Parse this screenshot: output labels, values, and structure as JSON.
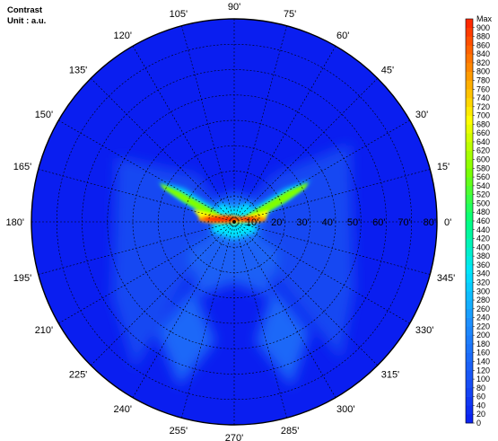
{
  "title": "Contrast",
  "unit": "Unit : a.u.",
  "chart_data": {
    "type": "heatmap",
    "subtype": "polar-conoscopic",
    "azimuth_labels": [
      "0'",
      "15'",
      "30'",
      "45'",
      "60'",
      "75'",
      "90'",
      "105'",
      "120'",
      "135'",
      "150'",
      "165'",
      "180'",
      "195'",
      "210'",
      "225'",
      "240'",
      "255'",
      "270'",
      "285'",
      "300'",
      "315'",
      "330'",
      "345'"
    ],
    "azimuth_angles": [
      0,
      15,
      30,
      45,
      60,
      75,
      90,
      105,
      120,
      135,
      150,
      165,
      180,
      195,
      210,
      225,
      240,
      255,
      270,
      285,
      300,
      315,
      330,
      345
    ],
    "polar_labels": [
      "10'",
      "20'",
      "30'",
      "40'",
      "50'",
      "60'",
      "70'",
      "80'"
    ],
    "polar_values": [
      10,
      20,
      30,
      40,
      50,
      60,
      70,
      80
    ],
    "polar_range": [
      0,
      80
    ],
    "colorbar": {
      "max_label": "Max",
      "ticks": [
        900,
        880,
        860,
        840,
        820,
        800,
        780,
        760,
        740,
        720,
        700,
        680,
        660,
        640,
        620,
        600,
        580,
        560,
        540,
        520,
        500,
        480,
        460,
        440,
        420,
        400,
        380,
        360,
        340,
        320,
        300,
        280,
        260,
        240,
        220,
        200,
        180,
        160,
        140,
        120,
        100,
        80,
        60,
        40,
        20,
        0
      ],
      "range": [
        0,
        920
      ],
      "colors": [
        "#0a1ef0",
        "#1a5af6",
        "#1e90ff",
        "#00e5ff",
        "#00ff7f",
        "#7fff00",
        "#ffff00",
        "#ff8c00",
        "#ff2000"
      ]
    },
    "features": [
      {
        "name": "center-peak",
        "azimuth": 180,
        "polar": 5,
        "value": 900
      },
      {
        "name": "arm-left-upper",
        "azimuth": 165,
        "polar": 30,
        "value": 520
      },
      {
        "name": "arm-right-upper",
        "azimuth": 15,
        "polar": 30,
        "value": 500
      },
      {
        "name": "lobe-lower-left",
        "azimuth": 240,
        "polar": 50,
        "value": 200
      },
      {
        "name": "lobe-lower-right",
        "azimuth": 300,
        "polar": 50,
        "value": 200
      }
    ],
    "grid": true
  }
}
